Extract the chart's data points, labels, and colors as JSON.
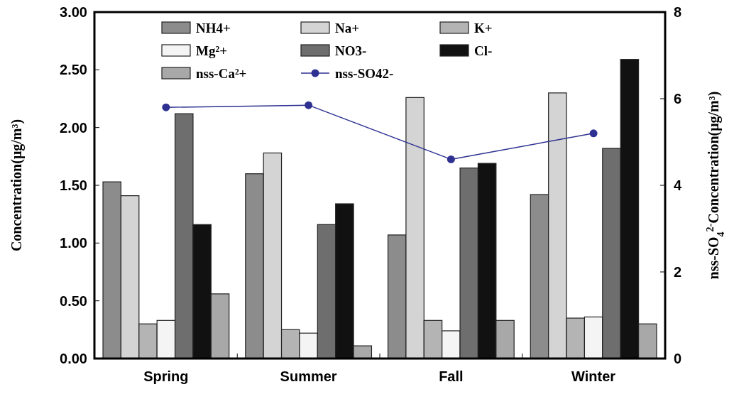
{
  "chart_data": {
    "type": "bar",
    "categories": [
      "Spring",
      "Summer",
      "Fall",
      "Winter"
    ],
    "ylabel": "Concentration(μg/m³)",
    "y2label": "nss-SO$_{4}$$^{2-}$Concentration(μg/m³)",
    "ylim": [
      0,
      3
    ],
    "yticks": [
      {
        "value": 0,
        "label": "0.00"
      },
      {
        "value": 0.5,
        "label": "0.50"
      },
      {
        "value": 1,
        "label": "1.00"
      },
      {
        "value": 1.5,
        "label": "1.50"
      },
      {
        "value": 2,
        "label": "2.00"
      },
      {
        "value": 2.5,
        "label": "2.50"
      },
      {
        "value": 3,
        "label": "3.00"
      }
    ],
    "y2lim": [
      0,
      8
    ],
    "y2ticks": [
      0,
      2,
      4,
      6,
      8
    ],
    "legend": "top",
    "grid": false,
    "series": [
      {
        "name": "NH4+",
        "color": "#8c8c8c",
        "values": [
          1.53,
          1.6,
          1.07,
          1.42
        ]
      },
      {
        "name": "Na+",
        "color": "#d4d4d4",
        "values": [
          1.41,
          1.78,
          2.26,
          2.3
        ]
      },
      {
        "name": "K+",
        "color": "#b4b4b4",
        "values": [
          0.3,
          0.25,
          0.33,
          0.35
        ]
      },
      {
        "name": "Mg²+",
        "color": "#f4f4f4",
        "values": [
          0.33,
          0.22,
          0.24,
          0.36
        ]
      },
      {
        "name": "NO3-",
        "color": "#6e6e6e",
        "values": [
          2.12,
          1.16,
          1.65,
          1.82
        ]
      },
      {
        "name": "Cl-",
        "color": "#111111",
        "values": [
          1.16,
          1.34,
          1.69,
          2.59
        ]
      },
      {
        "name": "nss-Ca²+",
        "color": "#a8a8a8",
        "values": [
          0.56,
          0.11,
          0.33,
          0.3
        ]
      },
      {
        "name": "nss-SO42-",
        "type": "line",
        "axis": "y2",
        "color": "#2e3192",
        "marker": "circle",
        "values": [
          5.8,
          5.85,
          4.6,
          5.2
        ]
      }
    ]
  }
}
